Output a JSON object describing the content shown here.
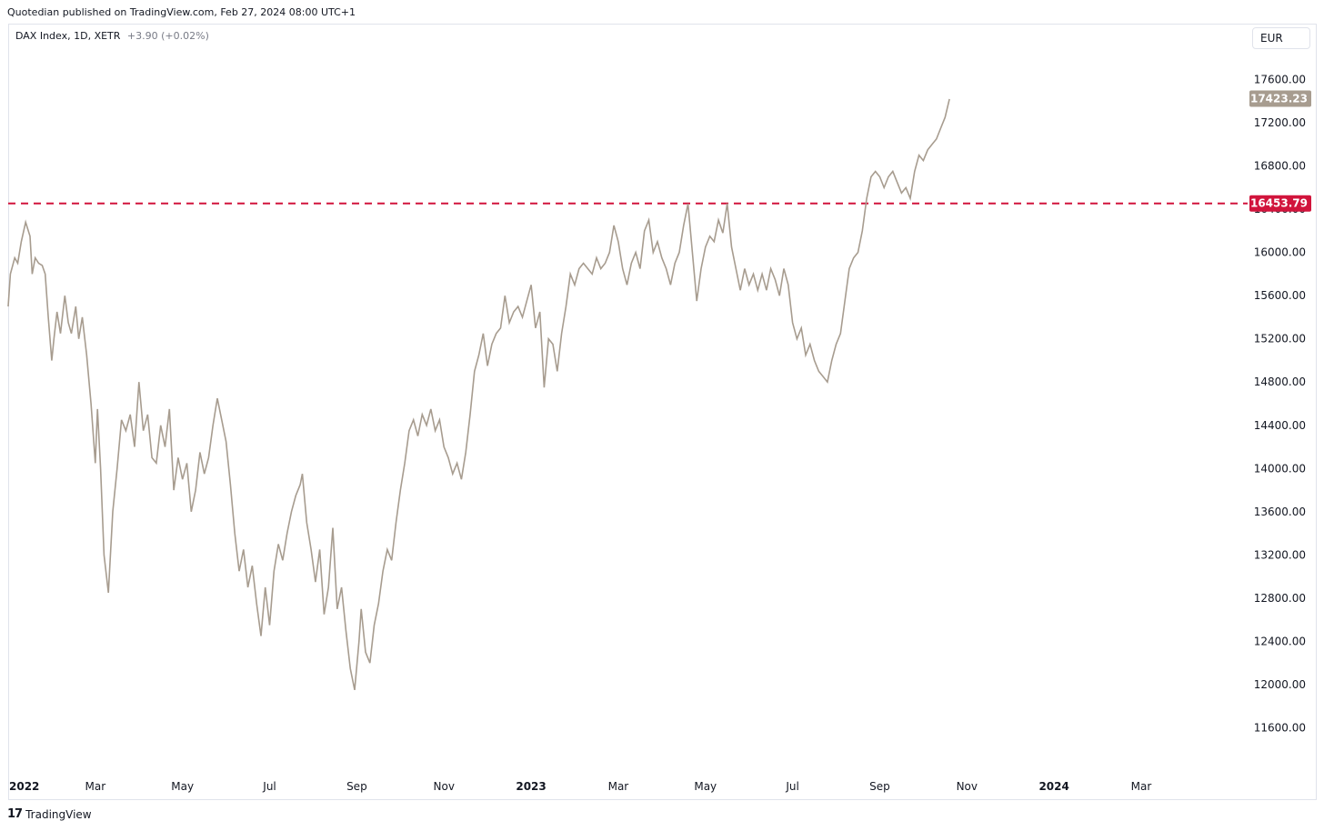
{
  "header": {
    "published": "Quotedian published on TradingView.com, Feb 27, 2024 08:00 UTC+1"
  },
  "legend": {
    "symbol": "DAX Index, 1D, XETR",
    "change": "+3.90 (+0.02%)"
  },
  "currency": "EUR",
  "footer": {
    "brand": "TradingView",
    "logo_glyph": "17"
  },
  "colors": {
    "line": "#a79c8f",
    "last_badge": "#a79c8f",
    "level_line": "#d1143c",
    "grid_text": "#131722"
  },
  "chart_data": {
    "type": "line",
    "x_ticks": [
      {
        "label": "2022",
        "x": 0.0,
        "bold": true
      },
      {
        "label": "Mar",
        "x": 2.0,
        "bold": false
      },
      {
        "label": "May",
        "x": 4.0,
        "bold": false
      },
      {
        "label": "Jul",
        "x": 6.0,
        "bold": false
      },
      {
        "label": "Sep",
        "x": 8.0,
        "bold": false
      },
      {
        "label": "Nov",
        "x": 10.0,
        "bold": false
      },
      {
        "label": "2023",
        "x": 12.0,
        "bold": true
      },
      {
        "label": "Mar",
        "x": 14.0,
        "bold": false
      },
      {
        "label": "May",
        "x": 16.0,
        "bold": false
      },
      {
        "label": "Jul",
        "x": 18.0,
        "bold": false
      },
      {
        "label": "Sep",
        "x": 20.0,
        "bold": false
      },
      {
        "label": "Nov",
        "x": 22.0,
        "bold": false
      },
      {
        "label": "2024",
        "x": 24.0,
        "bold": true
      },
      {
        "label": "Mar",
        "x": 26.0,
        "bold": false
      }
    ],
    "y_ticks": [
      "11600.00",
      "12000.00",
      "12400.00",
      "12800.00",
      "13200.00",
      "13600.00",
      "14000.00",
      "14400.00",
      "14800.00",
      "15200.00",
      "15600.00",
      "16000.00",
      "16400.00",
      "16800.00",
      "17200.00",
      "17600.00"
    ],
    "ylim": [
      11200,
      18000
    ],
    "xlim": [
      0,
      28.4
    ],
    "last_value": "17423.23",
    "level_line": {
      "value": 16453.79,
      "label": "16453.79"
    },
    "series": [
      {
        "values": [
          [
            0.0,
            15500
          ],
          [
            0.05,
            15800
          ],
          [
            0.15,
            15950
          ],
          [
            0.22,
            15900
          ],
          [
            0.3,
            16100
          ],
          [
            0.4,
            16280
          ],
          [
            0.5,
            16150
          ],
          [
            0.55,
            15800
          ],
          [
            0.62,
            15950
          ],
          [
            0.7,
            15900
          ],
          [
            0.78,
            15880
          ],
          [
            0.85,
            15800
          ],
          [
            0.92,
            15400
          ],
          [
            1.0,
            15000
          ],
          [
            1.05,
            15200
          ],
          [
            1.12,
            15450
          ],
          [
            1.2,
            15250
          ],
          [
            1.3,
            15600
          ],
          [
            1.38,
            15350
          ],
          [
            1.45,
            15250
          ],
          [
            1.55,
            15500
          ],
          [
            1.62,
            15200
          ],
          [
            1.7,
            15400
          ],
          [
            1.8,
            15050
          ],
          [
            1.9,
            14600
          ],
          [
            2.0,
            14050
          ],
          [
            2.05,
            14550
          ],
          [
            2.12,
            14000
          ],
          [
            2.2,
            13200
          ],
          [
            2.3,
            12850
          ],
          [
            2.4,
            13600
          ],
          [
            2.5,
            14000
          ],
          [
            2.6,
            14450
          ],
          [
            2.7,
            14350
          ],
          [
            2.8,
            14500
          ],
          [
            2.9,
            14200
          ],
          [
            3.0,
            14800
          ],
          [
            3.1,
            14350
          ],
          [
            3.2,
            14500
          ],
          [
            3.3,
            14100
          ],
          [
            3.4,
            14050
          ],
          [
            3.5,
            14400
          ],
          [
            3.6,
            14200
          ],
          [
            3.7,
            14550
          ],
          [
            3.8,
            13800
          ],
          [
            3.9,
            14100
          ],
          [
            4.0,
            13900
          ],
          [
            4.1,
            14050
          ],
          [
            4.2,
            13600
          ],
          [
            4.3,
            13800
          ],
          [
            4.4,
            14150
          ],
          [
            4.5,
            13950
          ],
          [
            4.6,
            14100
          ],
          [
            4.7,
            14400
          ],
          [
            4.8,
            14650
          ],
          [
            4.9,
            14450
          ],
          [
            5.0,
            14250
          ],
          [
            5.1,
            13850
          ],
          [
            5.2,
            13400
          ],
          [
            5.3,
            13050
          ],
          [
            5.4,
            13250
          ],
          [
            5.5,
            12900
          ],
          [
            5.6,
            13100
          ],
          [
            5.7,
            12750
          ],
          [
            5.8,
            12450
          ],
          [
            5.9,
            12900
          ],
          [
            6.0,
            12550
          ],
          [
            6.1,
            13050
          ],
          [
            6.2,
            13300
          ],
          [
            6.3,
            13150
          ],
          [
            6.4,
            13400
          ],
          [
            6.5,
            13600
          ],
          [
            6.6,
            13750
          ],
          [
            6.7,
            13850
          ],
          [
            6.75,
            13950
          ],
          [
            6.85,
            13500
          ],
          [
            6.95,
            13250
          ],
          [
            7.05,
            12950
          ],
          [
            7.15,
            13250
          ],
          [
            7.25,
            12650
          ],
          [
            7.35,
            12900
          ],
          [
            7.45,
            13450
          ],
          [
            7.55,
            12700
          ],
          [
            7.65,
            12900
          ],
          [
            7.75,
            12500
          ],
          [
            7.85,
            12150
          ],
          [
            7.95,
            11950
          ],
          [
            8.05,
            12400
          ],
          [
            8.1,
            12700
          ],
          [
            8.2,
            12300
          ],
          [
            8.3,
            12200
          ],
          [
            8.4,
            12550
          ],
          [
            8.5,
            12750
          ],
          [
            8.6,
            13050
          ],
          [
            8.7,
            13250
          ],
          [
            8.8,
            13150
          ],
          [
            8.9,
            13500
          ],
          [
            9.0,
            13800
          ],
          [
            9.1,
            14050
          ],
          [
            9.2,
            14350
          ],
          [
            9.3,
            14450
          ],
          [
            9.4,
            14300
          ],
          [
            9.5,
            14500
          ],
          [
            9.6,
            14400
          ],
          [
            9.7,
            14550
          ],
          [
            9.8,
            14350
          ],
          [
            9.9,
            14450
          ],
          [
            10.0,
            14200
          ],
          [
            10.1,
            14100
          ],
          [
            10.2,
            13950
          ],
          [
            10.3,
            14050
          ],
          [
            10.4,
            13900
          ],
          [
            10.5,
            14150
          ],
          [
            10.6,
            14500
          ],
          [
            10.7,
            14900
          ],
          [
            10.8,
            15050
          ],
          [
            10.9,
            15250
          ],
          [
            11.0,
            14950
          ],
          [
            11.1,
            15150
          ],
          [
            11.2,
            15250
          ],
          [
            11.3,
            15300
          ],
          [
            11.4,
            15600
          ],
          [
            11.5,
            15350
          ],
          [
            11.6,
            15450
          ],
          [
            11.7,
            15500
          ],
          [
            11.8,
            15400
          ],
          [
            11.9,
            15550
          ],
          [
            12.0,
            15700
          ],
          [
            12.1,
            15300
          ],
          [
            12.2,
            15450
          ],
          [
            12.3,
            14750
          ],
          [
            12.4,
            15200
          ],
          [
            12.5,
            15150
          ],
          [
            12.6,
            14900
          ],
          [
            12.7,
            15250
          ],
          [
            12.8,
            15500
          ],
          [
            12.9,
            15800
          ],
          [
            13.0,
            15700
          ],
          [
            13.1,
            15850
          ],
          [
            13.2,
            15900
          ],
          [
            13.3,
            15850
          ],
          [
            13.4,
            15800
          ],
          [
            13.5,
            15950
          ],
          [
            13.6,
            15850
          ],
          [
            13.7,
            15900
          ],
          [
            13.8,
            16000
          ],
          [
            13.9,
            16250
          ],
          [
            14.0,
            16100
          ],
          [
            14.1,
            15850
          ],
          [
            14.2,
            15700
          ],
          [
            14.3,
            15900
          ],
          [
            14.4,
            16000
          ],
          [
            14.5,
            15850
          ],
          [
            14.6,
            16200
          ],
          [
            14.7,
            16300
          ],
          [
            14.8,
            16000
          ],
          [
            14.9,
            16100
          ],
          [
            15.0,
            15950
          ],
          [
            15.1,
            15850
          ],
          [
            15.2,
            15700
          ],
          [
            15.3,
            15900
          ],
          [
            15.4,
            16000
          ],
          [
            15.5,
            16250
          ],
          [
            15.6,
            16450
          ],
          [
            15.7,
            16000
          ],
          [
            15.8,
            15550
          ],
          [
            15.9,
            15850
          ],
          [
            16.0,
            16050
          ],
          [
            16.1,
            16150
          ],
          [
            16.2,
            16100
          ],
          [
            16.3,
            16300
          ],
          [
            16.4,
            16180
          ],
          [
            16.5,
            16453
          ],
          [
            16.6,
            16050
          ],
          [
            16.7,
            15850
          ],
          [
            16.8,
            15650
          ],
          [
            16.9,
            15850
          ],
          [
            17.0,
            15700
          ],
          [
            17.1,
            15800
          ],
          [
            17.2,
            15650
          ],
          [
            17.3,
            15800
          ],
          [
            17.4,
            15650
          ],
          [
            17.5,
            15850
          ],
          [
            17.6,
            15750
          ],
          [
            17.7,
            15600
          ],
          [
            17.8,
            15850
          ],
          [
            17.9,
            15700
          ],
          [
            18.0,
            15350
          ],
          [
            18.1,
            15200
          ],
          [
            18.2,
            15300
          ],
          [
            18.3,
            15050
          ],
          [
            18.4,
            15150
          ],
          [
            18.5,
            15000
          ],
          [
            18.6,
            14900
          ],
          [
            18.7,
            14850
          ],
          [
            18.8,
            14800
          ],
          [
            18.9,
            15000
          ],
          [
            19.0,
            15150
          ],
          [
            19.1,
            15250
          ],
          [
            19.2,
            15550
          ],
          [
            19.3,
            15850
          ],
          [
            19.4,
            15950
          ],
          [
            19.5,
            16000
          ],
          [
            19.6,
            16200
          ],
          [
            19.7,
            16500
          ],
          [
            19.8,
            16700
          ],
          [
            19.9,
            16750
          ],
          [
            20.0,
            16700
          ],
          [
            20.1,
            16600
          ],
          [
            20.2,
            16700
          ],
          [
            20.3,
            16750
          ],
          [
            20.4,
            16650
          ],
          [
            20.5,
            16550
          ],
          [
            20.6,
            16600
          ],
          [
            20.7,
            16500
          ],
          [
            20.8,
            16750
          ],
          [
            20.9,
            16900
          ],
          [
            21.0,
            16850
          ],
          [
            21.1,
            16950
          ],
          [
            21.2,
            17000
          ],
          [
            21.3,
            17050
          ],
          [
            21.4,
            17150
          ],
          [
            21.5,
            17250
          ],
          [
            21.6,
            17420
          ]
        ]
      }
    ]
  }
}
